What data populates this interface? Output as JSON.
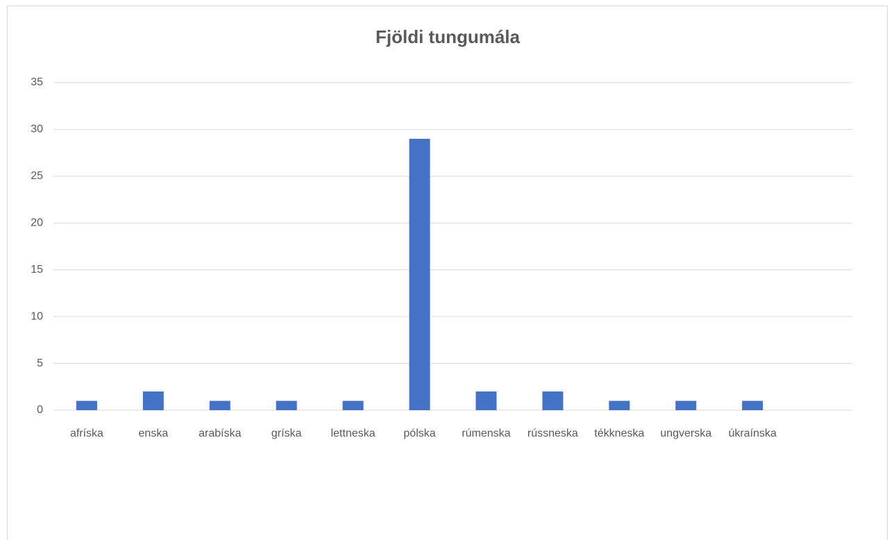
{
  "chart_data": {
    "type": "bar",
    "title": "Fjöldi tungumála",
    "categories": [
      "afríska",
      "enska",
      "arabíska",
      "gríska",
      "lettneska",
      "pólska",
      "rúmenska",
      "rússneska",
      "tékkneska",
      "ungverska",
      "úkraínska",
      null
    ],
    "values": [
      1,
      2,
      1,
      1,
      1,
      29,
      2,
      2,
      1,
      1,
      1,
      null
    ],
    "color": "#4472c4",
    "ylim": [
      0,
      35
    ],
    "yticks": [
      0,
      5,
      10,
      15,
      20,
      25,
      30,
      35
    ],
    "grid": true
  }
}
